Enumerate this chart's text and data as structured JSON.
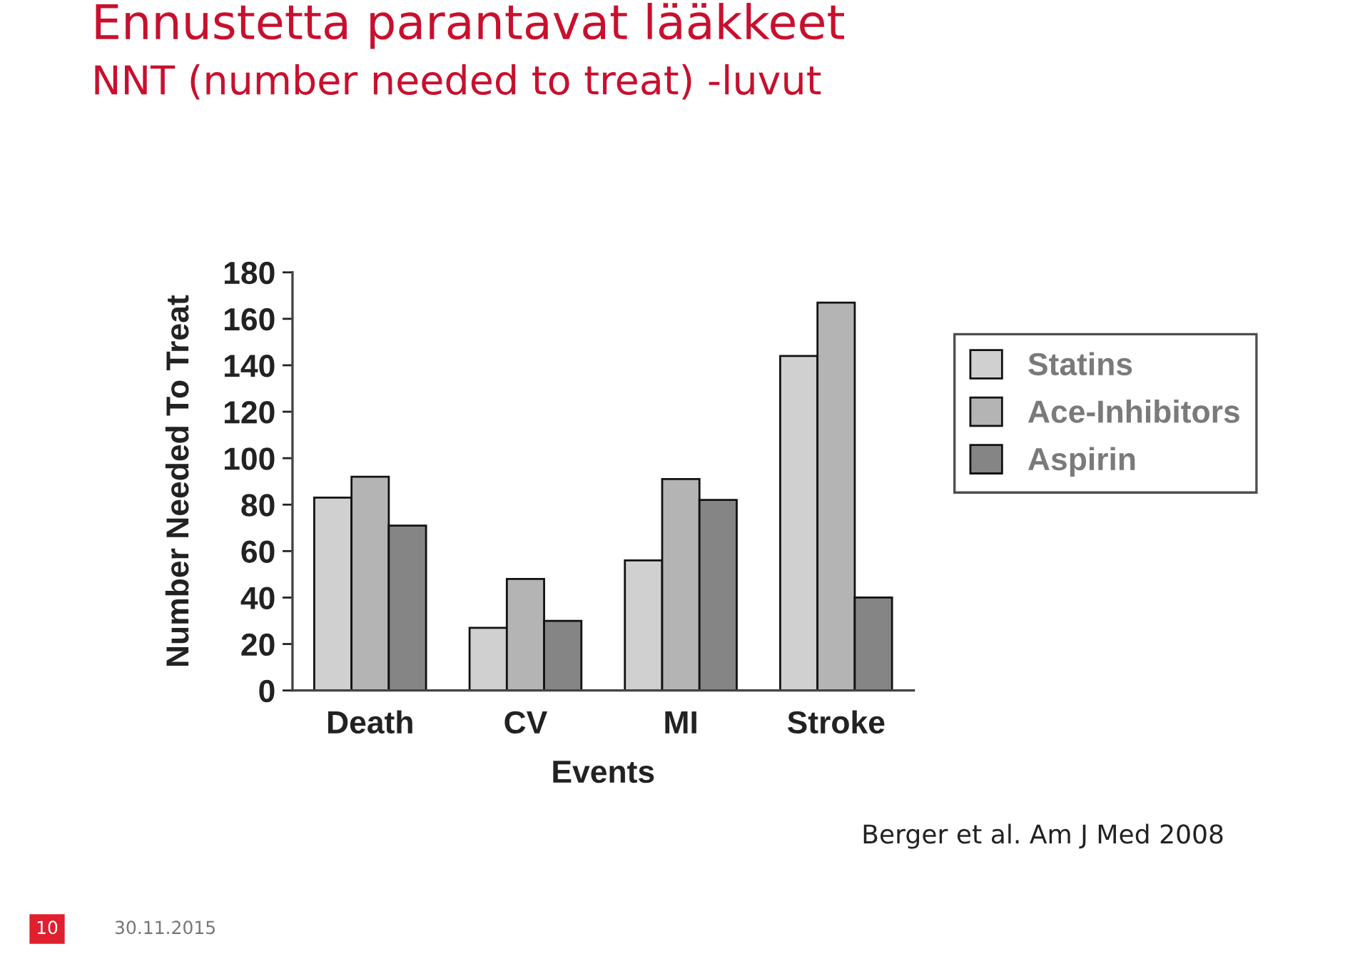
{
  "chart_data": {
    "type": "bar",
    "title": "Ennustetta parantavat lääkkeet",
    "subtitle": "NNT (number needed to treat) -luvut",
    "xlabel": "Events",
    "ylabel": "Number Needed To Treat",
    "categories": [
      "Death",
      "CV",
      "MI",
      "Stroke"
    ],
    "series": [
      {
        "name": "Statins",
        "color": "#d0d0d0",
        "values": [
          83,
          27,
          56,
          144
        ]
      },
      {
        "name": "Ace-Inhibitors",
        "color": "#b4b4b4",
        "values": [
          92,
          48,
          91,
          167
        ]
      },
      {
        "name": "Aspirin",
        "color": "#858585",
        "values": [
          71,
          30,
          82,
          40
        ]
      }
    ],
    "ylim": [
      0,
      180
    ],
    "yticks": [
      0,
      20,
      40,
      60,
      80,
      100,
      120,
      140,
      160,
      180
    ],
    "legend": "top right",
    "annotations": [
      "Berger et al. Am J Med 2008",
      "10",
      "30.11.2015"
    ]
  }
}
